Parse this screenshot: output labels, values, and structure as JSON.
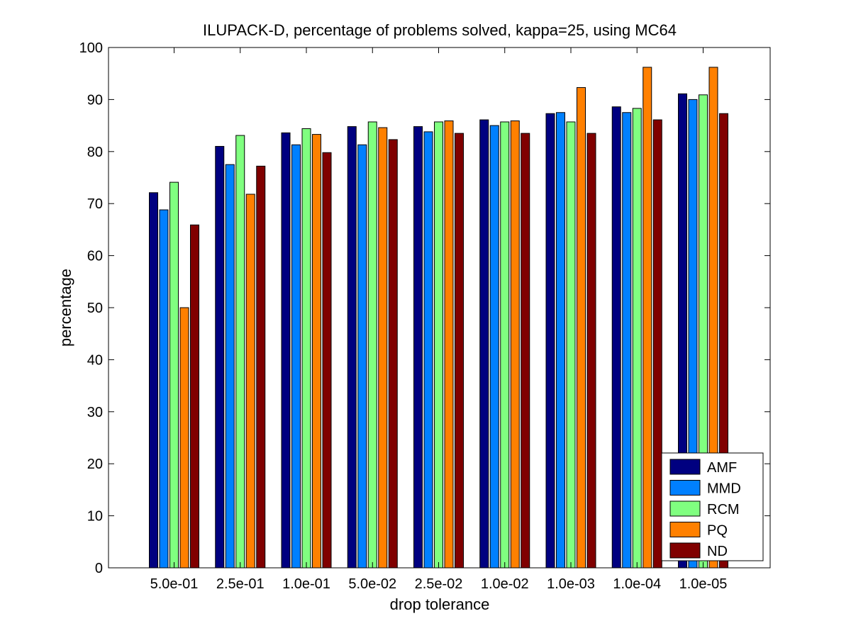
{
  "chart_data": {
    "type": "bar",
    "title": "ILUPACK-D, percentage of problems solved, kappa=25, using MC64",
    "xlabel": "drop tolerance",
    "ylabel": "percentage",
    "ylim": [
      0,
      100
    ],
    "yticks": [
      "0",
      "10",
      "20",
      "30",
      "40",
      "50",
      "60",
      "70",
      "80",
      "90",
      "100"
    ],
    "categories": [
      "5.0e-01",
      "2.5e-01",
      "1.0e-01",
      "5.0e-02",
      "2.5e-02",
      "1.0e-02",
      "1.0e-03",
      "1.0e-04",
      "1.0e-05"
    ],
    "grid": false,
    "legend_position": "bottom-right",
    "series": [
      {
        "name": "AMF",
        "color": "#000080",
        "values": [
          72.1,
          81.0,
          83.6,
          84.8,
          84.8,
          86.1,
          87.3,
          88.6,
          91.1
        ]
      },
      {
        "name": "MMD",
        "color": "#0080ff",
        "values": [
          68.8,
          77.5,
          81.3,
          81.3,
          83.8,
          85.0,
          87.5,
          87.5,
          90.0
        ]
      },
      {
        "name": "RCM",
        "color": "#80ff80",
        "values": [
          74.1,
          83.1,
          84.4,
          85.7,
          85.7,
          85.7,
          85.7,
          88.3,
          90.9
        ]
      },
      {
        "name": "PQ",
        "color": "#ff8000",
        "values": [
          50.0,
          71.8,
          83.3,
          84.6,
          85.9,
          85.9,
          92.3,
          96.2,
          96.2
        ]
      },
      {
        "name": "ND",
        "color": "#800000",
        "values": [
          65.9,
          77.2,
          79.8,
          82.3,
          83.5,
          83.5,
          83.5,
          86.1,
          87.3
        ]
      }
    ]
  }
}
